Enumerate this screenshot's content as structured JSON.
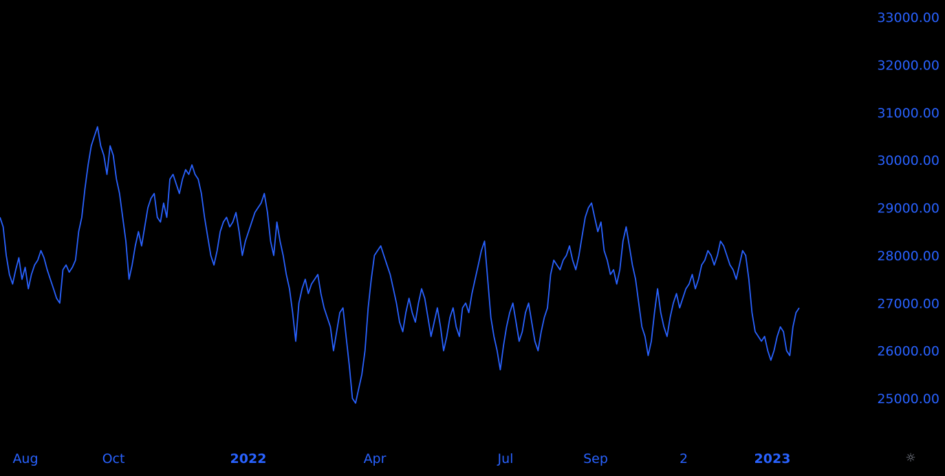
{
  "chart_data": {
    "type": "line",
    "title": "",
    "xlabel": "",
    "ylabel": "",
    "grid": false,
    "legend": "none",
    "line_color": "#2962ff",
    "axis_label_color": "#2962ff",
    "background_color": "#000000",
    "ylim": [
      24000,
      33200
    ],
    "y_axis_position": "right",
    "y_ticks": [
      {
        "value": 25000,
        "label": "25000.00"
      },
      {
        "value": 26000,
        "label": "26000.00"
      },
      {
        "value": 27000,
        "label": "27000.00"
      },
      {
        "value": 28000,
        "label": "28000.00"
      },
      {
        "value": 29000,
        "label": "29000.00"
      },
      {
        "value": 30000,
        "label": "30000.00"
      },
      {
        "value": 31000,
        "label": "31000.00"
      },
      {
        "value": 32000,
        "label": "32000.00"
      },
      {
        "value": 33000,
        "label": "33000.00"
      }
    ],
    "x_ticks": [
      {
        "label": "Aug",
        "major": false
      },
      {
        "label": "Oct",
        "major": false
      },
      {
        "label": "2022",
        "major": true
      },
      {
        "label": "Apr",
        "major": false
      },
      {
        "label": "Jul",
        "major": false
      },
      {
        "label": "Sep",
        "major": false
      },
      {
        "label": "2",
        "major": false
      },
      {
        "label": "2023",
        "major": true
      }
    ],
    "series": [
      {
        "values": [
          28800,
          28600,
          28000,
          27600,
          27400,
          27700,
          27950,
          27500,
          27750,
          27300,
          27600,
          27800,
          27900,
          28100,
          27950,
          27700,
          27500,
          27300,
          27100,
          27000,
          27700,
          27800,
          27650,
          27750,
          27900,
          28500,
          28800,
          29400,
          29900,
          30300,
          30500,
          30700,
          30300,
          30100,
          29700,
          30300,
          30100,
          29600,
          29300,
          28800,
          28300,
          27500,
          27800,
          28200,
          28500,
          28200,
          28600,
          29000,
          29200,
          29300,
          28800,
          28700,
          29100,
          28800,
          29600,
          29700,
          29500,
          29300,
          29600,
          29800,
          29700,
          29900,
          29700,
          29600,
          29300,
          28800,
          28400,
          28000,
          27800,
          28100,
          28500,
          28700,
          28800,
          28600,
          28700,
          28900,
          28500,
          28000,
          28300,
          28500,
          28700,
          28900,
          29000,
          29100,
          29300,
          28900,
          28300,
          28000,
          28700,
          28300,
          28000,
          27600,
          27300,
          26800,
          26200,
          27000,
          27300,
          27500,
          27200,
          27400,
          27500,
          27600,
          27200,
          26900,
          26700,
          26500,
          26000,
          26400,
          26800,
          26900,
          26300,
          25700,
          25000,
          24900,
          25200,
          25500,
          26000,
          26900,
          27500,
          28000,
          28100,
          28200,
          28000,
          27800,
          27600,
          27300,
          27000,
          26600,
          26400,
          26800,
          27100,
          26800,
          26600,
          27000,
          27300,
          27100,
          26700,
          26300,
          26600,
          26900,
          26500,
          26000,
          26300,
          26700,
          26900,
          26500,
          26300,
          26900,
          27000,
          26800,
          27200,
          27500,
          27800,
          28100,
          28300,
          27500,
          26700,
          26300,
          26000,
          25600,
          26100,
          26500,
          26800,
          27000,
          26600,
          26200,
          26400,
          26800,
          27000,
          26600,
          26200,
          26000,
          26400,
          26700,
          26900,
          27600,
          27900,
          27800,
          27700,
          27900,
          28000,
          28200,
          27900,
          27700,
          28000,
          28400,
          28800,
          29000,
          29100,
          28800,
          28500,
          28700,
          28100,
          27900,
          27600,
          27700,
          27400,
          27700,
          28300,
          28600,
          28200,
          27800,
          27500,
          27000,
          26500,
          26300,
          25900,
          26200,
          26800,
          27300,
          26800,
          26500,
          26300,
          26700,
          27000,
          27200,
          26900,
          27100,
          27300,
          27400,
          27600,
          27300,
          27500,
          27800,
          27900,
          28100,
          28000,
          27800,
          28000,
          28300,
          28200,
          28000,
          27800,
          27700,
          27500,
          27800,
          28100,
          28000,
          27500,
          26800,
          26400,
          26300,
          26200,
          26300,
          26000,
          25800,
          26000,
          26300,
          26500,
          26400,
          26000,
          25900,
          26500,
          26800,
          26900
        ]
      }
    ]
  },
  "controls": {
    "settings_icon": "gear-icon"
  }
}
